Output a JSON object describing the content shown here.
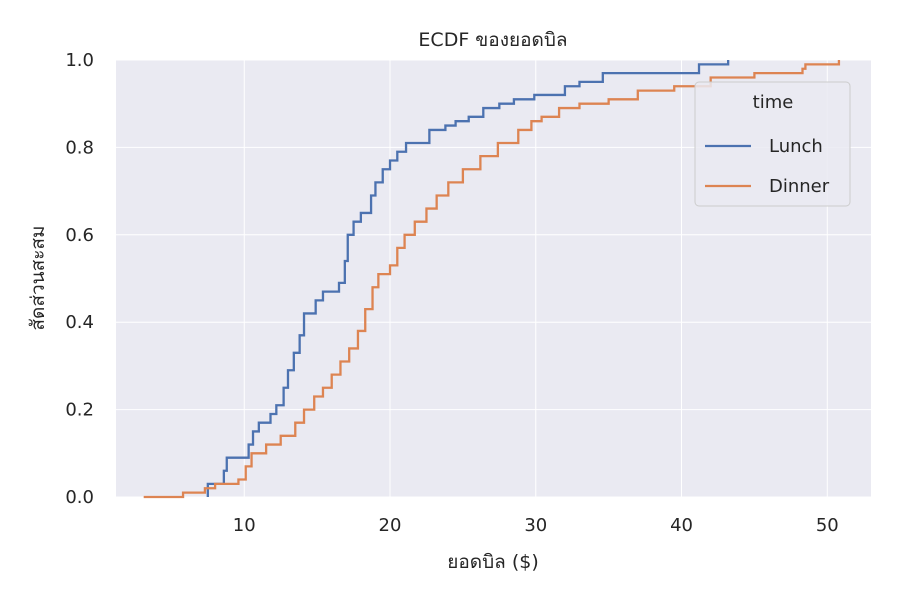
{
  "chart_data": {
    "type": "line",
    "subtype": "ecdf-step",
    "title": "ECDF ของยอดบิล",
    "xlabel": "ยอดบิล ($)",
    "ylabel": "สัดส่วนสะสม",
    "xlim": [
      1.2,
      53.0
    ],
    "ylim": [
      0.0,
      1.0
    ],
    "x_ticks": [
      10,
      20,
      30,
      40,
      50
    ],
    "y_ticks": [
      0.0,
      0.2,
      0.4,
      0.6,
      0.8,
      1.0
    ],
    "x_tick_labels": [
      "10",
      "20",
      "30",
      "40",
      "50"
    ],
    "y_tick_labels": [
      "0.0",
      "0.2",
      "0.4",
      "0.6",
      "0.8",
      "1.0"
    ],
    "grid": true,
    "legend": {
      "title": "time",
      "placement": "top-right",
      "entries": [
        "Lunch",
        "Dinner"
      ]
    },
    "series": [
      {
        "name": "Lunch",
        "color": "#4c72b0",
        "points": [
          [
            7.5,
            0.0
          ],
          [
            7.5,
            0.03
          ],
          [
            8.4,
            0.03
          ],
          [
            8.6,
            0.06
          ],
          [
            8.8,
            0.09
          ],
          [
            10.1,
            0.09
          ],
          [
            10.3,
            0.12
          ],
          [
            10.6,
            0.15
          ],
          [
            11.0,
            0.17
          ],
          [
            11.8,
            0.19
          ],
          [
            12.2,
            0.21
          ],
          [
            12.7,
            0.25
          ],
          [
            13.0,
            0.29
          ],
          [
            13.4,
            0.33
          ],
          [
            13.8,
            0.37
          ],
          [
            14.1,
            0.42
          ],
          [
            14.9,
            0.45
          ],
          [
            15.4,
            0.47
          ],
          [
            16.5,
            0.49
          ],
          [
            16.9,
            0.54
          ],
          [
            17.1,
            0.6
          ],
          [
            17.5,
            0.63
          ],
          [
            18.0,
            0.65
          ],
          [
            18.7,
            0.69
          ],
          [
            19.0,
            0.72
          ],
          [
            19.5,
            0.75
          ],
          [
            20.0,
            0.77
          ],
          [
            20.5,
            0.79
          ],
          [
            21.1,
            0.81
          ],
          [
            22.7,
            0.84
          ],
          [
            23.8,
            0.85
          ],
          [
            24.5,
            0.86
          ],
          [
            25.4,
            0.87
          ],
          [
            26.4,
            0.89
          ],
          [
            27.5,
            0.9
          ],
          [
            28.5,
            0.91
          ],
          [
            29.9,
            0.92
          ],
          [
            32.0,
            0.94
          ],
          [
            33.0,
            0.95
          ],
          [
            34.6,
            0.97
          ],
          [
            38.5,
            0.97
          ],
          [
            41.2,
            0.99
          ],
          [
            43.2,
            1.0
          ]
        ]
      },
      {
        "name": "Dinner",
        "color": "#dd8452",
        "points": [
          [
            3.1,
            0.0
          ],
          [
            5.8,
            0.01
          ],
          [
            7.3,
            0.02
          ],
          [
            8.0,
            0.03
          ],
          [
            9.6,
            0.04
          ],
          [
            10.1,
            0.07
          ],
          [
            10.5,
            0.1
          ],
          [
            11.5,
            0.12
          ],
          [
            12.5,
            0.14
          ],
          [
            13.5,
            0.17
          ],
          [
            14.1,
            0.2
          ],
          [
            14.8,
            0.23
          ],
          [
            15.4,
            0.25
          ],
          [
            16.0,
            0.28
          ],
          [
            16.6,
            0.31
          ],
          [
            17.2,
            0.34
          ],
          [
            17.8,
            0.38
          ],
          [
            18.3,
            0.43
          ],
          [
            18.8,
            0.48
          ],
          [
            19.2,
            0.51
          ],
          [
            20.0,
            0.53
          ],
          [
            20.5,
            0.57
          ],
          [
            21.0,
            0.6
          ],
          [
            21.7,
            0.63
          ],
          [
            22.5,
            0.66
          ],
          [
            23.2,
            0.69
          ],
          [
            24.0,
            0.72
          ],
          [
            25.0,
            0.75
          ],
          [
            26.2,
            0.78
          ],
          [
            27.4,
            0.81
          ],
          [
            28.8,
            0.84
          ],
          [
            29.7,
            0.86
          ],
          [
            30.4,
            0.87
          ],
          [
            31.6,
            0.89
          ],
          [
            33.0,
            0.9
          ],
          [
            35.0,
            0.91
          ],
          [
            37.0,
            0.93
          ],
          [
            39.5,
            0.94
          ],
          [
            42.0,
            0.96
          ],
          [
            45.0,
            0.97
          ],
          [
            48.3,
            0.98
          ],
          [
            48.5,
            0.99
          ],
          [
            50.8,
            1.0
          ]
        ]
      }
    ]
  }
}
